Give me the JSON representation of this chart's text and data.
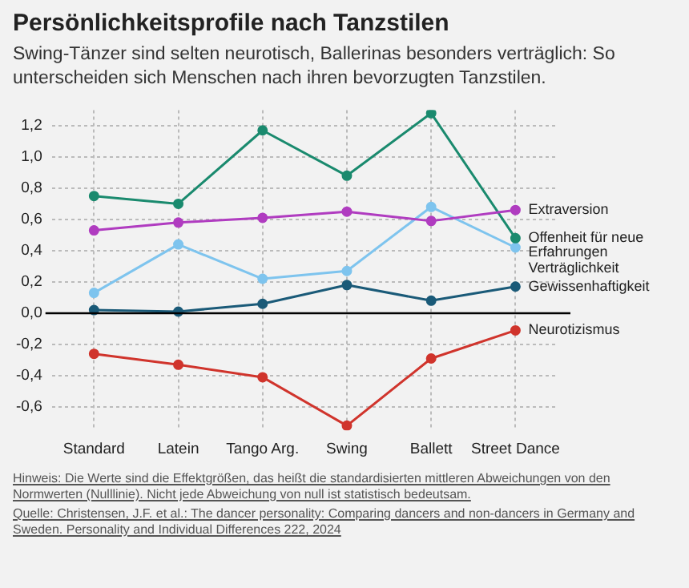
{
  "chart_data": {
    "type": "line",
    "title": "Persönlichkeitsprofile nach Tanzstilen",
    "subtitle": "Swing-Tänzer sind selten neurotisch, Ballerinas besonders verträglich: So unterscheiden sich Menschen nach ihren bevorzugten Tanzstilen.",
    "categories": [
      "Standard",
      "Latein",
      "Tango Arg.",
      "Swing",
      "Ballett",
      "Street Dance"
    ],
    "series": [
      {
        "name": "Extraversion",
        "color": "#b03cc0",
        "values": [
          0.53,
          0.58,
          0.61,
          0.65,
          0.59,
          0.66
        ]
      },
      {
        "name": "Offenheit für neue Erfahrungen",
        "color": "#1a8a6e",
        "values": [
          0.75,
          0.7,
          1.17,
          0.88,
          1.28,
          0.48
        ]
      },
      {
        "name": "Verträglichkeit",
        "color": "#7ec4ee",
        "values": [
          0.13,
          0.44,
          0.22,
          0.27,
          0.68,
          0.42
        ]
      },
      {
        "name": "Gewissenhaftigkeit",
        "color": "#1a5a78",
        "values": [
          0.02,
          0.01,
          0.06,
          0.18,
          0.08,
          0.17
        ]
      },
      {
        "name": "Neurotizismus",
        "color": "#d0342c",
        "values": [
          -0.26,
          -0.33,
          -0.41,
          -0.72,
          -0.29,
          -0.11
        ]
      }
    ],
    "ylim": [
      -0.75,
      1.3
    ],
    "yticks": [
      {
        "value": -0.6,
        "label": "-0,6"
      },
      {
        "value": -0.4,
        "label": "-0,4"
      },
      {
        "value": -0.2,
        "label": "-0,2"
      },
      {
        "value": 0,
        "label": "0,0"
      },
      {
        "value": 0.2,
        "label": "0,2"
      },
      {
        "value": 0.4,
        "label": "0,4"
      },
      {
        "value": 0.6,
        "label": "0,6"
      },
      {
        "value": 0.8,
        "label": "0,8"
      },
      {
        "value": 1.0,
        "label": "1,0"
      },
      {
        "value": 1.2,
        "label": "1,2"
      }
    ],
    "ref_lines": [
      {
        "axis": "y",
        "value": 0,
        "color": "#000000"
      }
    ],
    "grid": true,
    "legend": false,
    "marker": "circle",
    "line_style": "solid",
    "annotations": [
      "Hinweis: Die Werte sind die Effektgrößen, das heißt die standardisierten mittleren Abweichungen von den Normwerten (Nulllinie). Nicht jede Abweichung von null ist statistisch bedeutsam.",
      "Quelle: Christensen, J.F. et al.: The dancer personality: Comparing dancers and non-dancers in Germany and Sweden. Personality and Individual Differences 222, 2024"
    ]
  }
}
